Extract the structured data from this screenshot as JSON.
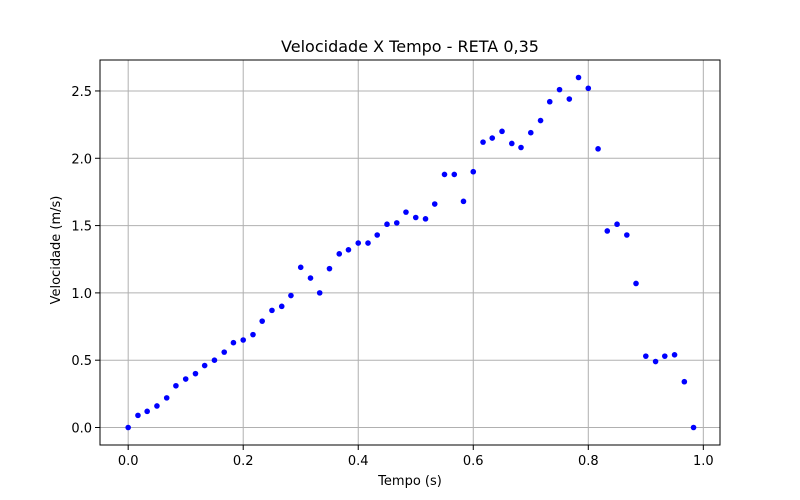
{
  "chart_data": {
    "type": "scatter",
    "title": "Velocidade X Tempo - RETA 0,35",
    "xlabel": "Tempo (s)",
    "ylabel": "Velocidade (m/s)",
    "xlim": [
      -0.049,
      1.029
    ],
    "ylim": [
      -0.13,
      2.73
    ],
    "xticks": [
      0.0,
      0.2,
      0.4,
      0.6,
      0.8,
      1.0
    ],
    "xtick_labels": [
      "0.0",
      "0.2",
      "0.4",
      "0.6",
      "0.8",
      "1.0"
    ],
    "yticks": [
      0.0,
      0.5,
      1.0,
      1.5,
      2.0,
      2.5
    ],
    "ytick_labels": [
      "0.0",
      "0.5",
      "1.0",
      "1.5",
      "2.0",
      "2.5"
    ],
    "grid": true,
    "marker_color": "#0000ff",
    "x": [
      0.0,
      0.017,
      0.033,
      0.05,
      0.067,
      0.083,
      0.1,
      0.117,
      0.133,
      0.15,
      0.167,
      0.183,
      0.2,
      0.217,
      0.233,
      0.25,
      0.267,
      0.283,
      0.3,
      0.317,
      0.333,
      0.35,
      0.367,
      0.383,
      0.4,
      0.417,
      0.433,
      0.45,
      0.467,
      0.483,
      0.5,
      0.517,
      0.533,
      0.55,
      0.567,
      0.583,
      0.6,
      0.617,
      0.633,
      0.65,
      0.667,
      0.683,
      0.7,
      0.717,
      0.733,
      0.75,
      0.767,
      0.783,
      0.8,
      0.817,
      0.833,
      0.85,
      0.867,
      0.883,
      0.9,
      0.917,
      0.933,
      0.95,
      0.967,
      0.983
    ],
    "y": [
      0.0,
      0.09,
      0.12,
      0.16,
      0.22,
      0.31,
      0.36,
      0.4,
      0.46,
      0.5,
      0.56,
      0.63,
      0.65,
      0.69,
      0.79,
      0.87,
      0.9,
      0.98,
      1.19,
      1.11,
      1.0,
      1.18,
      1.29,
      1.32,
      1.37,
      1.37,
      1.43,
      1.51,
      1.52,
      1.6,
      1.56,
      1.55,
      1.66,
      1.88,
      1.88,
      1.68,
      1.9,
      2.12,
      2.15,
      2.2,
      2.11,
      2.08,
      2.19,
      2.28,
      2.42,
      2.51,
      2.44,
      2.6,
      2.52,
      2.07,
      1.46,
      1.51,
      1.43,
      1.07,
      0.53,
      0.49,
      0.53,
      0.54,
      0.34,
      0.0
    ]
  }
}
